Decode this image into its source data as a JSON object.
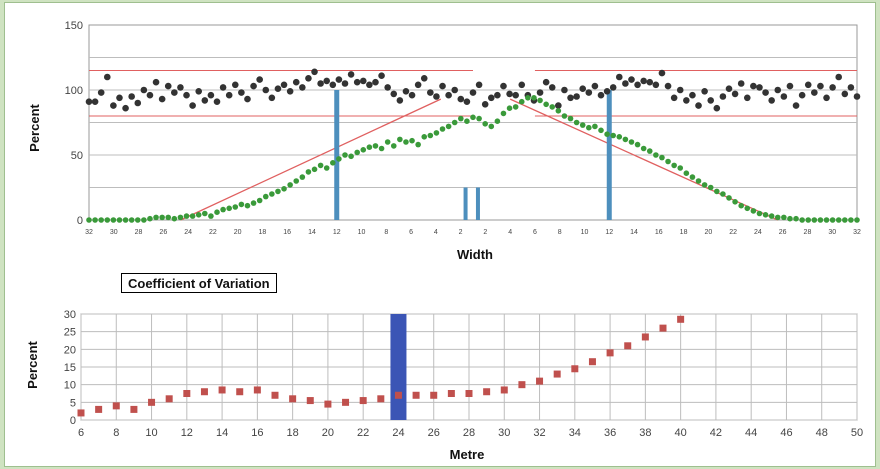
{
  "chart_data": [
    {
      "type": "scatter",
      "xlabel": "Width",
      "ylabel": "Percent",
      "ylim": [
        0,
        150
      ],
      "yticks": [
        0,
        50,
        100,
        150
      ],
      "xtick_labels": [
        "32",
        "30",
        "28",
        "26",
        "24",
        "22",
        "20",
        "18",
        "16",
        "14",
        "12",
        "10",
        "8",
        "6",
        "4",
        "2",
        "2",
        "4",
        "6",
        "8",
        "10",
        "12",
        "14",
        "16",
        "18",
        "20",
        "22",
        "24",
        "26",
        "28",
        "30",
        "32"
      ],
      "x_range": [
        0,
        31
      ],
      "grid": true,
      "reference_lines": [
        {
          "y": 115,
          "color": "#e06060"
        },
        {
          "y": 80,
          "color": "#e06060"
        }
      ],
      "vertical_bars": [
        {
          "x": 10,
          "height": 100
        },
        {
          "x": 15.2,
          "height": 25
        },
        {
          "x": 15.7,
          "height": 25
        },
        {
          "x": 21,
          "height": 100
        }
      ],
      "trend_lines": [
        {
          "from": [
            3.7,
            0
          ],
          "to": [
            14.2,
            93
          ]
        },
        {
          "from": [
            17,
            93
          ],
          "to": [
            27.8,
            0
          ]
        }
      ],
      "series": [
        {
          "color": "#333333",
          "values": [
            91,
            91,
            98,
            110,
            88,
            94,
            86,
            95,
            90,
            100,
            96,
            106,
            93,
            103,
            98,
            102,
            96,
            88,
            99,
            92,
            96,
            91,
            102,
            96,
            104,
            98,
            93,
            103,
            108,
            100,
            94,
            101,
            104,
            99,
            106,
            102,
            109,
            114,
            105,
            107,
            104,
            108,
            105,
            112,
            106,
            107,
            104,
            106,
            111,
            102,
            97,
            92,
            99,
            96,
            104,
            109,
            98,
            95,
            103,
            96,
            100,
            93,
            91,
            98,
            104,
            89,
            94,
            96,
            103,
            97,
            96,
            104,
            96,
            92,
            98,
            106,
            102,
            88,
            100,
            94,
            95,
            101,
            98,
            103,
            96,
            99,
            102,
            110,
            105,
            108,
            104,
            107,
            106,
            104,
            113,
            103,
            94,
            100,
            92,
            96,
            88,
            99,
            92,
            86,
            95,
            101,
            97,
            105,
            94,
            103,
            102,
            98,
            92,
            100,
            95,
            103,
            88,
            96,
            104,
            98,
            103,
            94,
            102,
            110,
            97,
            102,
            95
          ]
        },
        {
          "color": "#3a9a3a",
          "values": [
            0,
            0,
            0,
            0,
            0,
            0,
            0,
            0,
            0,
            0,
            1,
            2,
            2,
            2,
            1,
            2,
            3,
            3,
            4,
            5,
            3,
            6,
            8,
            9,
            10,
            12,
            11,
            13,
            15,
            18,
            20,
            22,
            24,
            27,
            30,
            33,
            37,
            39,
            42,
            40,
            44,
            47,
            50,
            49,
            52,
            54,
            56,
            57,
            55,
            60,
            57,
            62,
            60,
            61,
            58,
            64,
            65,
            67,
            70,
            72,
            75,
            78,
            76,
            79,
            78,
            74,
            72,
            76,
            82,
            86,
            87,
            91,
            94,
            94,
            92,
            89,
            87,
            84,
            80,
            78,
            75,
            73,
            71,
            72,
            69,
            66,
            65,
            64,
            62,
            60,
            58,
            55,
            53,
            50,
            48,
            45,
            42,
            40,
            36,
            33,
            30,
            27,
            25,
            22,
            20,
            17,
            14,
            11,
            9,
            7,
            5,
            4,
            3,
            2,
            2,
            1,
            1,
            0,
            0,
            0,
            0,
            0,
            0,
            0,
            0,
            0,
            0
          ]
        }
      ]
    },
    {
      "type": "scatter",
      "title": "Coefficient of Variation",
      "xlabel": "Metre",
      "ylabel": "Percent",
      "xlim": [
        6,
        50
      ],
      "ylim": [
        0,
        30
      ],
      "xticks": [
        6,
        8,
        10,
        12,
        14,
        16,
        18,
        20,
        22,
        24,
        26,
        28,
        30,
        32,
        34,
        36,
        38,
        40,
        42,
        44,
        46,
        48,
        50
      ],
      "yticks": [
        0,
        5,
        10,
        15,
        20,
        25,
        30
      ],
      "grid": true,
      "highlight_bar": {
        "x": 24,
        "color": "#3b55b5"
      },
      "series": [
        {
          "color": "#c0504d",
          "x": [
            6,
            7,
            8,
            9,
            10,
            11,
            12,
            13,
            14,
            15,
            16,
            17,
            18,
            19,
            20,
            21,
            22,
            23,
            24,
            25,
            26,
            27,
            28,
            29,
            30,
            31,
            32,
            33,
            34,
            35,
            36,
            37,
            38,
            39,
            40
          ],
          "values": [
            2,
            3,
            4,
            3,
            5,
            6,
            7.5,
            8,
            8.5,
            8,
            8.5,
            7,
            6,
            5.5,
            4.5,
            5,
            5.5,
            6,
            7,
            7,
            7,
            7.5,
            7.5,
            8,
            8.5,
            10,
            11,
            13,
            14.5,
            16.5,
            19,
            21,
            23.5,
            26,
            28.5
          ]
        }
      ]
    }
  ]
}
